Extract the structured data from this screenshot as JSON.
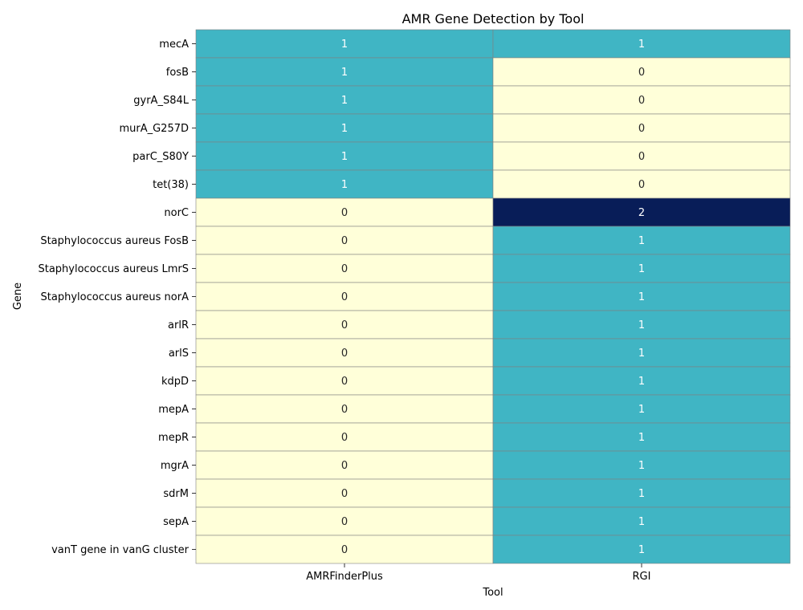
{
  "chart_data": {
    "type": "heatmap",
    "title": "AMR Gene Detection by Tool",
    "xlabel": "Tool",
    "ylabel": "Gene",
    "columns": [
      "AMRFinderPlus",
      "RGI"
    ],
    "rows": [
      "mecA",
      "fosB",
      "gyrA_S84L",
      "murA_G257D",
      "parC_S80Y",
      "tet(38)",
      "norC",
      "Staphylococcus aureus FosB",
      "Staphylococcus aureus LmrS",
      "Staphylococcus aureus norA",
      "arlR",
      "arlS",
      "kdpD",
      "mepA",
      "mepR",
      "mgrA",
      "sdrM",
      "sepA",
      "vanT gene in vanG cluster"
    ],
    "values": [
      [
        1,
        1
      ],
      [
        1,
        0
      ],
      [
        1,
        0
      ],
      [
        1,
        0
      ],
      [
        1,
        0
      ],
      [
        1,
        0
      ],
      [
        0,
        2
      ],
      [
        0,
        1
      ],
      [
        0,
        1
      ],
      [
        0,
        1
      ],
      [
        0,
        1
      ],
      [
        0,
        1
      ],
      [
        0,
        1
      ],
      [
        0,
        1
      ],
      [
        0,
        1
      ],
      [
        0,
        1
      ],
      [
        0,
        1
      ],
      [
        0,
        1
      ],
      [
        0,
        1
      ]
    ],
    "colormap": {
      "0": "#ffffd9",
      "1": "#40b5c4",
      "2": "#081d58"
    },
    "annotation_colors": {
      "dark": "#262626",
      "light": "#ffffff"
    },
    "cell_border_color": "#808080",
    "grid": false
  }
}
